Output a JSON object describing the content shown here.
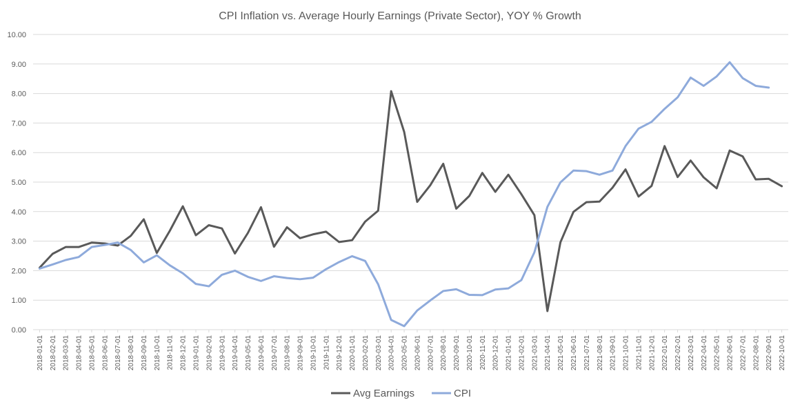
{
  "chart_data": {
    "type": "line",
    "title": "CPI Inflation vs. Average Hourly Earnings (Private Sector), YOY % Growth",
    "xlabel": "",
    "ylabel": "",
    "ylim": [
      0,
      10
    ],
    "yticks": [
      "0.00",
      "1.00",
      "2.00",
      "3.00",
      "4.00",
      "5.00",
      "6.00",
      "7.00",
      "8.00",
      "9.00",
      "10.00"
    ],
    "grid": true,
    "legend": "bottom",
    "x": [
      "2018-01-01",
      "2018-02-01",
      "2018-03-01",
      "2018-04-01",
      "2018-05-01",
      "2018-06-01",
      "2018-07-01",
      "2018-08-01",
      "2018-09-01",
      "2018-10-01",
      "2018-11-01",
      "2018-12-01",
      "2019-01-01",
      "2019-02-01",
      "2019-03-01",
      "2019-04-01",
      "2019-05-01",
      "2019-06-01",
      "2019-07-01",
      "2019-08-01",
      "2019-09-01",
      "2019-10-01",
      "2019-11-01",
      "2019-12-01",
      "2020-01-01",
      "2020-02-01",
      "2020-03-01",
      "2020-04-01",
      "2020-05-01",
      "2020-06-01",
      "2020-07-01",
      "2020-08-01",
      "2020-09-01",
      "2020-10-01",
      "2020-11-01",
      "2020-12-01",
      "2021-01-01",
      "2021-02-01",
      "2021-03-01",
      "2021-04-01",
      "2021-05-01",
      "2021-06-01",
      "2021-07-01",
      "2021-08-01",
      "2021-09-01",
      "2021-10-01",
      "2021-11-01",
      "2021-12-01",
      "2022-01-01",
      "2022-02-01",
      "2022-03-01",
      "2022-04-01",
      "2022-05-01",
      "2022-06-01",
      "2022-07-01",
      "2022-08-01",
      "2022-09-01",
      "2022-10-01"
    ],
    "series": [
      {
        "name": "Avg Earnings",
        "color": "#595959",
        "values": [
          2.1,
          2.57,
          2.8,
          2.8,
          2.95,
          2.92,
          2.85,
          3.18,
          3.74,
          2.6,
          3.35,
          4.18,
          3.2,
          3.54,
          3.43,
          2.58,
          3.28,
          4.15,
          2.81,
          3.47,
          3.1,
          3.23,
          3.32,
          2.97,
          3.03,
          3.66,
          4.03,
          8.08,
          6.7,
          4.33,
          4.89,
          5.62,
          4.1,
          4.53,
          5.31,
          4.67,
          5.25,
          4.59,
          3.88,
          0.63,
          2.96,
          3.99,
          4.32,
          4.34,
          4.81,
          5.43,
          4.51,
          4.87,
          6.22,
          5.17,
          5.73,
          5.16,
          4.79,
          6.07,
          5.87,
          5.09,
          5.11,
          4.86
        ]
      },
      {
        "name": "CPI",
        "color": "#8eaadb",
        "values": [
          2.07,
          2.21,
          2.36,
          2.46,
          2.8,
          2.87,
          2.95,
          2.7,
          2.28,
          2.52,
          2.18,
          1.91,
          1.55,
          1.47,
          1.86,
          2.0,
          1.79,
          1.65,
          1.81,
          1.75,
          1.71,
          1.76,
          2.05,
          2.29,
          2.49,
          2.33,
          1.54,
          0.33,
          0.12,
          0.65,
          0.99,
          1.31,
          1.37,
          1.18,
          1.17,
          1.36,
          1.4,
          1.68,
          2.62,
          4.16,
          4.99,
          5.39,
          5.37,
          5.25,
          5.39,
          6.22,
          6.81,
          7.04,
          7.48,
          7.87,
          8.54,
          8.26,
          8.58,
          9.06,
          8.52,
          8.26,
          8.2,
          null
        ]
      }
    ]
  }
}
